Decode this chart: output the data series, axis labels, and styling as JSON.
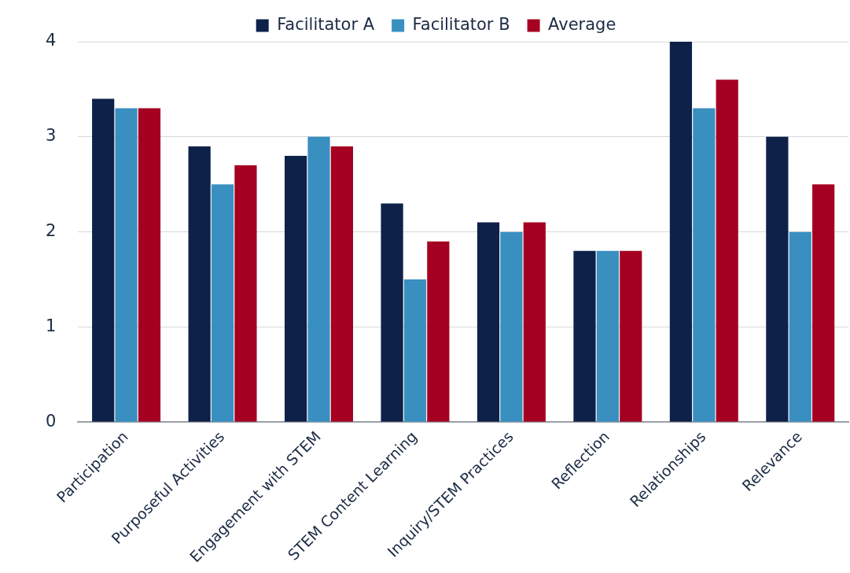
{
  "chart_data": {
    "type": "bar",
    "categories": [
      "Participation",
      "Purposeful Activities",
      "Engagement with STEM",
      "STEM Content Learning",
      "Inquiry/STEM Practices",
      "Reflection",
      "Relationships",
      "Relevance"
    ],
    "series": [
      {
        "name": "Facilitator A",
        "color": "#0d2149",
        "values": [
          3.4,
          2.9,
          2.8,
          2.3,
          2.1,
          1.8,
          4.0,
          3.0
        ]
      },
      {
        "name": "Facilitator B",
        "color": "#3a8fc1",
        "values": [
          3.3,
          2.5,
          3.0,
          1.5,
          2.0,
          1.8,
          3.3,
          2.0
        ]
      },
      {
        "name": "Average",
        "color": "#a50021",
        "values": [
          3.3,
          2.7,
          2.9,
          1.9,
          2.1,
          1.8,
          3.6,
          2.5
        ]
      }
    ],
    "ylim": [
      0,
      4
    ],
    "yticks": [
      0,
      1,
      2,
      3,
      4
    ],
    "grid": "y",
    "legend": "top"
  }
}
